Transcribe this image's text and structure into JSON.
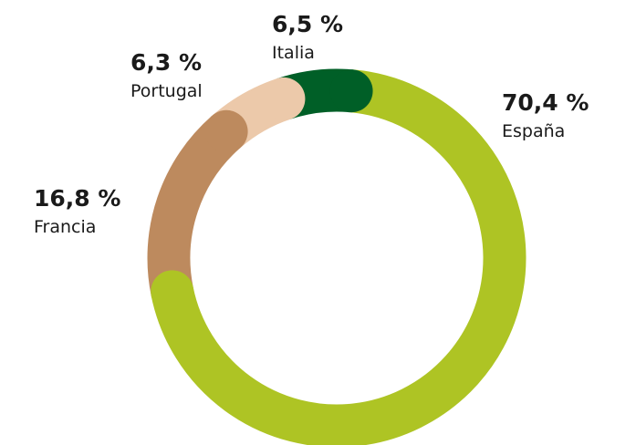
{
  "chart_data": {
    "type": "donut",
    "categories": [
      "España",
      "Francia",
      "Portugal",
      "Italia"
    ],
    "values": [
      70.4,
      16.8,
      6.3,
      6.5
    ],
    "value_labels": [
      "70,4 %",
      "16,8 %",
      "6,3 %",
      "6,5 %"
    ],
    "colors": [
      "#aec424",
      "#bd8a5e",
      "#ecc9aa",
      "#005f27"
    ]
  }
}
